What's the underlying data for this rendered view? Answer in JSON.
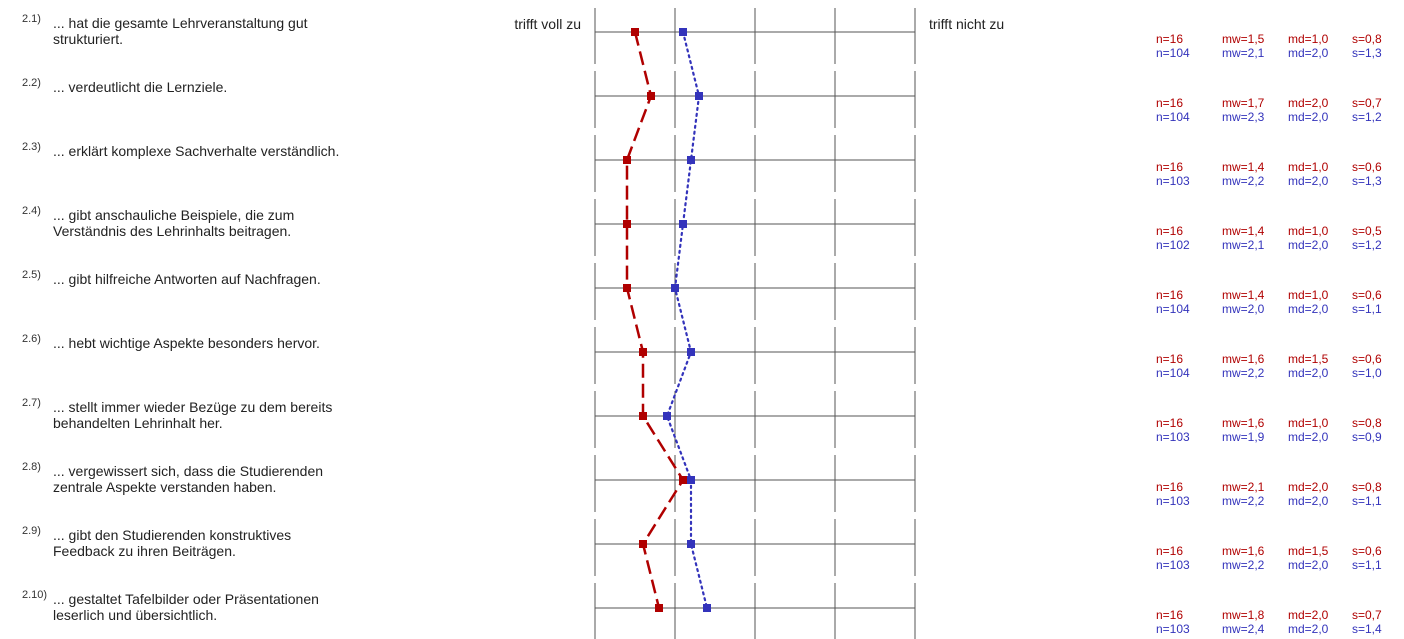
{
  "chart_data": {
    "type": "line",
    "scale_left_label": "trifft voll zu",
    "scale_right_label": "trifft nicht zu",
    "xlim": [
      1,
      5
    ],
    "colors": {
      "series_a": "#b00000",
      "series_b": "#3333bb",
      "grid": "#555555"
    },
    "items": [
      {
        "num": "2.1)",
        "lines": [
          "... hat die gesamte Lehrveranstaltung gut",
          "strukturiert."
        ],
        "a": {
          "n": "n=16",
          "mw": "mw=1,5",
          "md": "md=1,0",
          "s": "s=0,8"
        },
        "b": {
          "n": "n=104",
          "mw": "mw=2,1",
          "md": "md=2,0",
          "s": "s=1,3"
        }
      },
      {
        "num": "2.2)",
        "lines": [
          "... verdeutlicht die Lernziele."
        ],
        "a": {
          "n": "n=16",
          "mw": "mw=1,7",
          "md": "md=2,0",
          "s": "s=0,7"
        },
        "b": {
          "n": "n=104",
          "mw": "mw=2,3",
          "md": "md=2,0",
          "s": "s=1,2"
        }
      },
      {
        "num": "2.3)",
        "lines": [
          "... erklärt komplexe Sachverhalte verständlich."
        ],
        "a": {
          "n": "n=16",
          "mw": "mw=1,4",
          "md": "md=1,0",
          "s": "s=0,6"
        },
        "b": {
          "n": "n=103",
          "mw": "mw=2,2",
          "md": "md=2,0",
          "s": "s=1,3"
        }
      },
      {
        "num": "2.4)",
        "lines": [
          "... gibt anschauliche Beispiele, die zum",
          "Verständnis des Lehrinhalts beitragen."
        ],
        "a": {
          "n": "n=16",
          "mw": "mw=1,4",
          "md": "md=1,0",
          "s": "s=0,5"
        },
        "b": {
          "n": "n=102",
          "mw": "mw=2,1",
          "md": "md=2,0",
          "s": "s=1,2"
        }
      },
      {
        "num": "2.5)",
        "lines": [
          "... gibt hilfreiche Antworten auf Nachfragen."
        ],
        "a": {
          "n": "n=16",
          "mw": "mw=1,4",
          "md": "md=1,0",
          "s": "s=0,6"
        },
        "b": {
          "n": "n=104",
          "mw": "mw=2,0",
          "md": "md=2,0",
          "s": "s=1,1"
        }
      },
      {
        "num": "2.6)",
        "lines": [
          "... hebt wichtige Aspekte besonders hervor."
        ],
        "a": {
          "n": "n=16",
          "mw": "mw=1,6",
          "md": "md=1,5",
          "s": "s=0,6"
        },
        "b": {
          "n": "n=104",
          "mw": "mw=2,2",
          "md": "md=2,0",
          "s": "s=1,0"
        }
      },
      {
        "num": "2.7)",
        "lines": [
          "... stellt immer wieder Bezüge zu dem bereits",
          "behandelten Lehrinhalt her."
        ],
        "a": {
          "n": "n=16",
          "mw": "mw=1,6",
          "md": "md=1,0",
          "s": "s=0,8"
        },
        "b": {
          "n": "n=103",
          "mw": "mw=1,9",
          "md": "md=2,0",
          "s": "s=0,9"
        }
      },
      {
        "num": "2.8)",
        "lines": [
          "... vergewissert sich, dass die Studierenden",
          "zentrale Aspekte verstanden haben."
        ],
        "a": {
          "n": "n=16",
          "mw": "mw=2,1",
          "md": "md=2,0",
          "s": "s=0,8"
        },
        "b": {
          "n": "n=103",
          "mw": "mw=2,2",
          "md": "md=2,0",
          "s": "s=1,1"
        }
      },
      {
        "num": "2.9)",
        "lines": [
          "... gibt den Studierenden konstruktives",
          "Feedback zu ihren Beiträgen."
        ],
        "a": {
          "n": "n=16",
          "mw": "mw=1,6",
          "md": "md=1,5",
          "s": "s=0,6"
        },
        "b": {
          "n": "n=103",
          "mw": "mw=2,2",
          "md": "md=2,0",
          "s": "s=1,1"
        }
      },
      {
        "num": "2.10)",
        "lines": [
          "... gestaltet Tafelbilder oder Präsentationen",
          "leserlich und übersichtlich."
        ],
        "a": {
          "n": "n=16",
          "mw": "mw=1,8",
          "md": "md=2,0",
          "s": "s=0,7"
        },
        "b": {
          "n": "n=103",
          "mw": "mw=2,4",
          "md": "md=2,0",
          "s": "s=1,4"
        }
      }
    ],
    "series_a_values": [
      1.5,
      1.7,
      1.4,
      1.4,
      1.4,
      1.6,
      1.6,
      2.1,
      1.6,
      1.8
    ],
    "series_b_values": [
      2.1,
      2.3,
      2.2,
      2.1,
      2.0,
      2.2,
      1.9,
      2.2,
      2.2,
      2.4
    ]
  }
}
